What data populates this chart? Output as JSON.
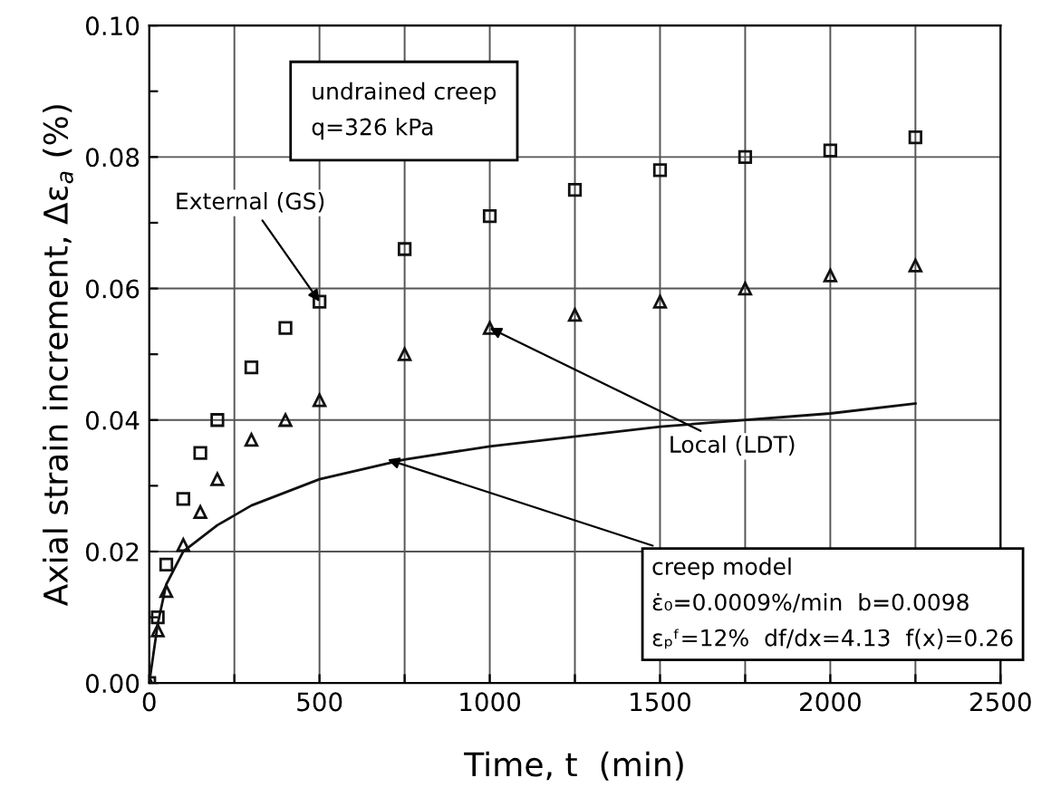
{
  "chart_data": {
    "type": "scatter",
    "xlabel": "Time, t  (min)",
    "ylabel": "Axial strain increment, Δε$_{a}$ (%)",
    "xlim": [
      0,
      2500
    ],
    "ylim": [
      0,
      0.1
    ],
    "xticks": [
      0,
      {
        "value": 250,
        "label": null
      },
      500,
      {
        "value": 750,
        "label": null
      },
      1000,
      {
        "value": 1250,
        "label": null
      },
      1500,
      {
        "value": 1750,
        "label": null
      },
      2000,
      {
        "value": 2250,
        "label": null
      },
      2500
    ],
    "yticks": [
      {
        "value": 0,
        "label": "0.00"
      },
      {
        "value": 0.01,
        "label": null
      },
      {
        "value": 0.02,
        "label": "0.02"
      },
      {
        "value": 0.03,
        "label": null
      },
      {
        "value": 0.04,
        "label": "0.04"
      },
      {
        "value": 0.05,
        "label": null
      },
      {
        "value": 0.06,
        "label": "0.06"
      },
      {
        "value": 0.07,
        "label": null
      },
      {
        "value": 0.08,
        "label": "0.08"
      },
      {
        "value": 0.09,
        "label": null
      },
      {
        "value": 0.1,
        "label": "0.10"
      }
    ],
    "grid": true,
    "series": [
      {
        "marker": "square",
        "color": "#111111",
        "x": [
          0,
          25,
          50,
          100,
          150,
          200,
          300,
          400,
          500,
          750,
          1000,
          1250,
          1500,
          1750,
          2000,
          2250
        ],
        "values": [
          0,
          0.01,
          0.018,
          0.028,
          0.035,
          0.04,
          0.048,
          0.054,
          0.058,
          0.066,
          0.071,
          0.075,
          0.078,
          0.08,
          0.081,
          0.083
        ]
      },
      {
        "marker": "triangle",
        "color": "#111111",
        "x": [
          0,
          25,
          50,
          100,
          150,
          200,
          300,
          400,
          500,
          750,
          1000,
          1250,
          1500,
          1750,
          2000,
          2250
        ],
        "values": [
          0,
          0.008,
          0.014,
          0.021,
          0.026,
          0.031,
          0.037,
          0.04,
          0.043,
          0.05,
          0.054,
          0.056,
          0.058,
          0.06,
          0.062,
          0.0635
        ]
      },
      {
        "type": "line",
        "color": "#111111",
        "x": [
          0,
          25,
          50,
          100,
          200,
          300,
          500,
          750,
          1000,
          1500,
          2000,
          2250
        ],
        "values": [
          0,
          0.009,
          0.015,
          0.02,
          0.024,
          0.027,
          0.031,
          0.034,
          0.036,
          0.039,
          0.041,
          0.0425
        ]
      }
    ],
    "annotations": [
      "undrained creep\nq=326 kPa",
      {
        "text": "External (GS)",
        "x": 500,
        "y": 0.058
      },
      {
        "text": "Local (LDT)",
        "x": 1000,
        "y": 0.054
      },
      {
        "text": "creep model\nε̇₀=0.0009%/min  b=0.0098\nεₚᶠ=12%  df/dx=4.13  f(x)=0.26",
        "x": 700,
        "y": 0.034
      }
    ]
  }
}
